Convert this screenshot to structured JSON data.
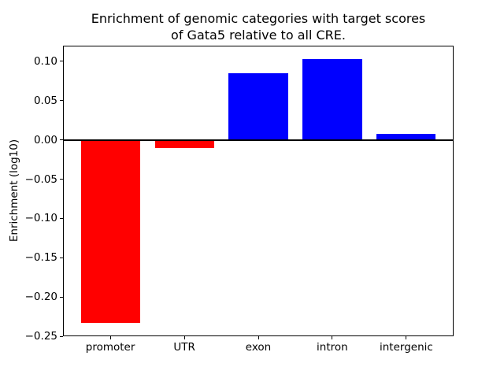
{
  "chart_data": {
    "type": "bar",
    "title": "Enrichment of genomic categories with target scores of Gata5 relative to all CRE.",
    "title_lines": [
      "Enrichment of genomic categories with target scores",
      "of Gata5 relative to all CRE."
    ],
    "xlabel": "",
    "ylabel": "Enrichment (log10)",
    "categories": [
      "promoter",
      "UTR",
      "exon",
      "intron",
      "intergenic"
    ],
    "values": [
      -0.233,
      -0.01,
      0.085,
      0.103,
      0.008
    ],
    "bar_colors": [
      "#ff0000",
      "#ff0000",
      "#0000ff",
      "#0000ff",
      "#0000ff"
    ],
    "negative_color": "#ff0000",
    "positive_color": "#0000ff",
    "ylim": [
      -0.25,
      0.12
    ],
    "yticks": [
      0.1,
      0.05,
      0.0,
      -0.05,
      -0.1,
      -0.15,
      -0.2,
      -0.25
    ],
    "ytick_labels": [
      "0.10",
      "0.05",
      "0.00",
      "−0.05",
      "−0.10",
      "−0.15",
      "−0.20",
      "−0.25"
    ],
    "bar_width_fraction": 0.8,
    "zero_line_color": "#000000",
    "grid": false,
    "legend": "none",
    "background_color": "#ffffff"
  }
}
